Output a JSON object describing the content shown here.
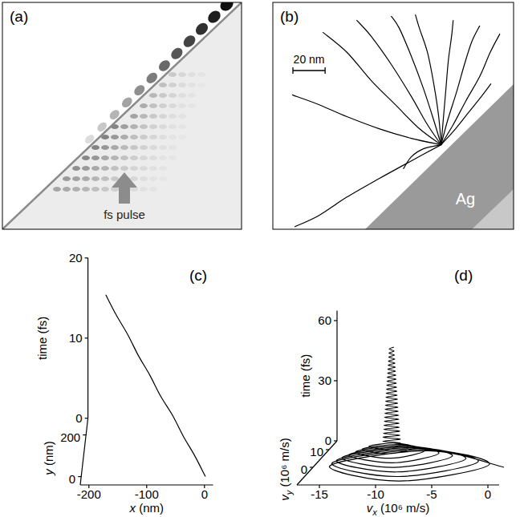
{
  "chart_data": [
    {
      "type": "image",
      "title": "(a)",
      "annotation": "fs pulse"
    },
    {
      "type": "line",
      "title": "(b)",
      "color": "#000000",
      "region_label": "Ag",
      "scale_bar": {
        "value": 20,
        "label": "20 nm"
      },
      "xlim": [
        -104.5,
        45
      ],
      "ylim": [
        -52.5,
        88.5
      ],
      "series": [
        {
          "x": [
            0,
            -18.5,
            -38.5,
            -58.5,
            -76,
            -92.5
          ],
          "y": [
            0,
            4,
            10,
            17.5,
            25,
            31
          ]
        },
        {
          "x": [
            0,
            -13.5,
            -28.5,
            -43.5,
            -58.5,
            -73.5
          ],
          "y": [
            0,
            10,
            25,
            40,
            57.5,
            70
          ]
        },
        {
          "x": [
            0,
            -8.5,
            -18.5,
            -31,
            -43.5,
            -52.5
          ],
          "y": [
            0,
            12.5,
            30,
            50,
            67.5,
            77.5
          ]
        },
        {
          "x": [
            0,
            -4.5,
            -11,
            -18.5,
            -26,
            -31
          ],
          "y": [
            0,
            15,
            35,
            55,
            72.5,
            80
          ]
        },
        {
          "x": [
            0,
            -1.5,
            -4.5,
            -8.5,
            -13.5,
            -16
          ],
          "y": [
            0,
            17.5,
            37.5,
            57.5,
            72.5,
            81
          ]
        },
        {
          "x": [
            0,
            1.5,
            3,
            4.5,
            6.5,
            7.5
          ],
          "y": [
            0,
            17.5,
            35,
            52.5,
            67.5,
            77.5
          ]
        },
        {
          "x": [
            0,
            4,
            9.5,
            14.5,
            19,
            24
          ],
          "y": [
            0,
            15,
            32.5,
            50,
            64,
            74
          ]
        },
        {
          "x": [
            0,
            7.5,
            15.5,
            24,
            30.5,
            36.5
          ],
          "y": [
            0,
            12.5,
            27.5,
            42.5,
            57.5,
            69
          ]
        },
        {
          "x": [
            0,
            9,
            17,
            25,
            31
          ],
          "y": [
            0,
            10,
            20,
            30,
            38
          ]
        },
        {
          "x": [
            0,
            -18.5,
            -38.5,
            -58.5,
            -76,
            -91
          ],
          "y": [
            0,
            -10,
            -21,
            -32.5,
            -44,
            -51
          ]
        },
        {
          "x": [
            0,
            -11,
            -18.5,
            -23.5
          ],
          "y": [
            0,
            -2.5,
            -7.5,
            -15
          ]
        }
      ]
    },
    {
      "type": "line3d",
      "title": "(c)",
      "color": "#000000",
      "xlabel": "x (nm)",
      "ylabel": "y (nm)",
      "zlabel": "time (fs)",
      "xlim": [
        -215,
        15
      ],
      "xticks": [
        -200,
        -100,
        0
      ],
      "ylim": [
        -40,
        280
      ],
      "yticks": [
        0,
        200
      ],
      "zlim": [
        0,
        20
      ],
      "zticks": [
        0,
        10,
        20
      ],
      "x": [
        0,
        -19,
        -40,
        -59,
        -81,
        -100,
        -121,
        -140,
        -161,
        -180
      ],
      "y": [
        0,
        21,
        40,
        61,
        79,
        100,
        119,
        141,
        160,
        180
      ],
      "z": [
        0,
        2,
        4,
        6,
        8,
        10,
        12,
        14,
        16,
        18
      ]
    },
    {
      "type": "line3d",
      "title": "(d)",
      "color": "#000000",
      "xlabel": "vx (10⁶ m/s)",
      "ylabel": "vy (10⁶ m/s)",
      "zlabel": "time (fs)",
      "xlim": [
        -17,
        1
      ],
      "xticks": [
        -15,
        -10,
        -5,
        0
      ],
      "ylim": [
        -10,
        15
      ],
      "yticks": [
        0,
        10
      ],
      "zlim": [
        0,
        65
      ],
      "zticks": [
        0,
        30,
        60
      ],
      "x": [
        0,
        -8,
        -15.5,
        -8,
        -1.3,
        -8.3,
        -15.3,
        -8.3,
        -2.3,
        -8.6,
        -14.9,
        -8.6,
        -3.4,
        -8.9,
        -14.4,
        -8.9,
        -4.6,
        -9.2,
        -13.8,
        -9.2,
        -5.8,
        -9.5,
        -13.2,
        -9.5,
        -7,
        -9.8,
        -12.6,
        -9.8,
        -8,
        -10,
        -12,
        -10,
        -9.2,
        -10.79,
        -9.22,
        -10.76,
        -9.25,
        -10.74,
        -9.27,
        -10.71,
        -9.3,
        -10.69,
        -9.32,
        -10.66,
        -9.35,
        -10.64,
        -9.37,
        -10.61,
        -9.4,
        -10.59,
        -9.42,
        -10.56,
        -9.45,
        -10.54,
        -9.47,
        -10.51,
        -9.5,
        -10.49,
        -9.52,
        -10.46,
        -9.55,
        -10.44,
        -9.57,
        -10.41,
        -9.6,
        -10.39,
        -9.62,
        -10.36,
        -9.65,
        -10.34,
        -9.67,
        -10.31,
        -9.7,
        -10.29,
        -9.72,
        -10.26,
        -9.75,
        -10.24,
        -9.77,
        -10.21,
        -9.8
      ],
      "y": [
        0,
        9,
        0,
        -9,
        0,
        8,
        0,
        -8,
        0,
        7,
        0,
        -7,
        0,
        6,
        0,
        -6,
        0,
        5,
        0,
        -5,
        0,
        4,
        0,
        -4,
        0,
        3,
        0,
        -3,
        0,
        2.2,
        0,
        -2.2,
        0,
        0,
        0,
        0,
        0,
        0,
        0,
        0,
        0,
        0,
        0,
        0,
        0,
        0,
        0,
        0,
        0,
        0,
        0,
        0,
        0,
        0,
        0,
        0,
        0,
        0,
        0,
        0,
        0,
        0,
        0,
        0,
        0,
        0,
        0,
        0,
        0,
        0,
        0,
        0,
        0,
        0,
        0,
        0,
        0,
        0,
        0,
        0,
        0
      ],
      "z": [
        0,
        0.35,
        0.7,
        1.05,
        1.4,
        1.75,
        2.1,
        2.45,
        2.8,
        3.15,
        3.5,
        3.85,
        4.2,
        4.55,
        4.9,
        5.25,
        5.6,
        5.95,
        6.3,
        6.65,
        7,
        7.35,
        7.7,
        8.05,
        8.4,
        8.75,
        9.1,
        9.45,
        9.8,
        10.15,
        10.5,
        10.85,
        12,
        13,
        14,
        15,
        16,
        17,
        18,
        19,
        20,
        21,
        22,
        23,
        24,
        25,
        26,
        27,
        28,
        29,
        30,
        31,
        32,
        33,
        34,
        35,
        36,
        37,
        38,
        39,
        40,
        41,
        42,
        43,
        44,
        45,
        46,
        47,
        48,
        49,
        50,
        51,
        52,
        53,
        54,
        55,
        56,
        57,
        58,
        59,
        60
      ]
    }
  ]
}
